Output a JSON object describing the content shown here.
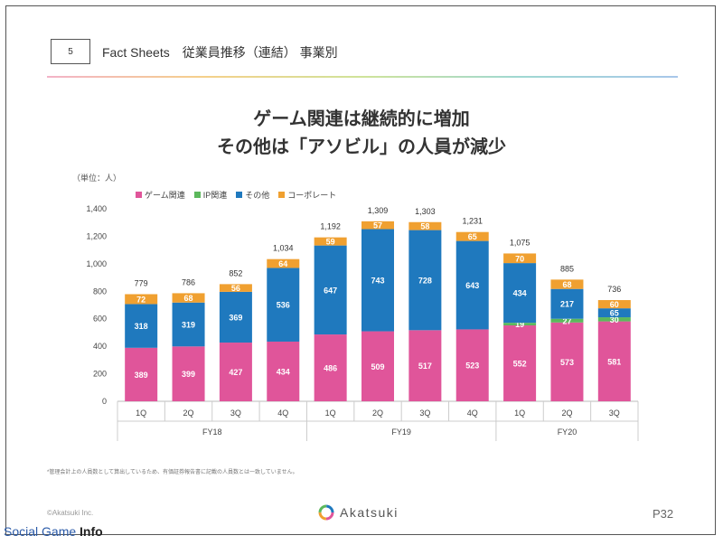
{
  "header": {
    "page_number": "5",
    "title": "Fact Sheets　従業員推移（連結） 事業別"
  },
  "headline": {
    "line1": "ゲーム関連は継続的に増加",
    "line2": "その他は「アソビル」の人員が減少"
  },
  "unit_label": "（単位：人）",
  "colors": {
    "game": "#e0559a",
    "ip": "#5cb85c",
    "other": "#1f79be",
    "corporate": "#f0a030"
  },
  "chart_data": {
    "type": "bar",
    "stacked": true,
    "categories": [
      "1Q",
      "2Q",
      "3Q",
      "4Q",
      "1Q",
      "2Q",
      "3Q",
      "4Q",
      "1Q",
      "2Q",
      "3Q"
    ],
    "fiscal_years": [
      {
        "label": "FY18",
        "count": 4
      },
      {
        "label": "FY19",
        "count": 4
      },
      {
        "label": "FY20",
        "count": 3
      }
    ],
    "series": [
      {
        "name": "ゲーム関連",
        "color": "#e0559a",
        "values": [
          389,
          399,
          427,
          434,
          486,
          509,
          517,
          523,
          552,
          573,
          581
        ]
      },
      {
        "name": "IP関連",
        "color": "#5cb85c",
        "values": [
          0,
          0,
          0,
          0,
          0,
          0,
          0,
          0,
          19,
          27,
          30
        ]
      },
      {
        "name": "その他",
        "color": "#1f79be",
        "values": [
          318,
          319,
          369,
          536,
          647,
          743,
          728,
          643,
          434,
          217,
          65
        ]
      },
      {
        "name": "コーポレート",
        "color": "#f0a030",
        "values": [
          72,
          68,
          56,
          64,
          59,
          57,
          58,
          65,
          70,
          68,
          60
        ]
      }
    ],
    "totals": [
      "779",
      "786",
      "852",
      "1,034",
      "1,192",
      "1,309",
      "1,303",
      "1,231",
      "1,075",
      "885",
      "736"
    ],
    "y_ticks": [
      "0",
      "200",
      "400",
      "600",
      "800",
      "1,000",
      "1,200",
      "1,400"
    ],
    "ylim": [
      0,
      1400
    ],
    "legend_position": "top-left",
    "grid": false
  },
  "footnote": "*管理会計上の人員数として算出しているため、有価証券報告書に記載の人員数とは一致していません。",
  "footer": {
    "copyright": "©Akatsuki Inc.",
    "logo_text": "Akatsuki",
    "page_label": "P32"
  },
  "watermark": {
    "part1": "Social Game ",
    "part2": "Info"
  }
}
